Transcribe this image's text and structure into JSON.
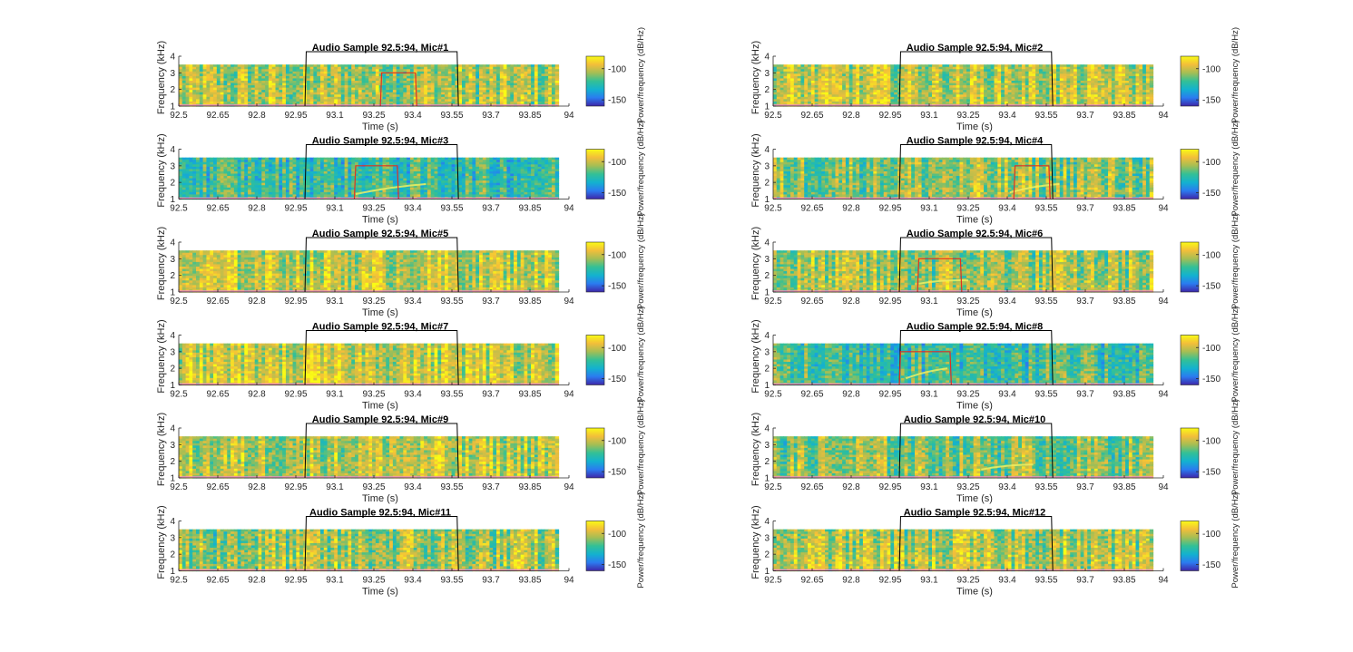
{
  "chart_data": {
    "type": "heatmap",
    "layout": "6 rows x 2 columns of spectrogram panels",
    "x_label": "Time (s)",
    "y_label": "Frequency (kHz)",
    "colorbar_label": "Power/frequency (dB/Hz)",
    "x_range": [
      92.5,
      94
    ],
    "x_ticks": [
      92.5,
      92.65,
      92.8,
      92.95,
      93.1,
      93.25,
      93.4,
      93.55,
      93.7,
      93.85,
      94
    ],
    "x_tick_labels": [
      "92.5",
      "92.65",
      "92.8",
      "92.95",
      "93.1",
      "93.25",
      "93.4",
      "93.55",
      "93.7",
      "93.85",
      "94"
    ],
    "y_range": [
      1,
      4
    ],
    "y_ticks": [
      1,
      2,
      3,
      4
    ],
    "y_tick_labels": [
      "1",
      "2",
      "3",
      "4"
    ],
    "spectrogram_freq_max_khz": 3.5,
    "colorbar_range": [
      -160,
      -80
    ],
    "colorbar_ticks": [
      -100,
      -150
    ],
    "colorbar_tick_labels": [
      "-100",
      "-150"
    ],
    "colormap": [
      "#3e26a8",
      "#2b7bf0",
      "#13b2cf",
      "#33c096",
      "#a5be54",
      "#f3be3a",
      "#f9fb15"
    ],
    "annotation_colors": {
      "black_window": "#000000",
      "red_window": "#e03020",
      "event_line": "#f0f060"
    },
    "panels": [
      {
        "title": "Audio Sample 92.5:94, Mic#1",
        "black_window": [
          92.99,
          93.57
        ],
        "red_window": [
          93.28,
          93.41
        ],
        "mean_level": 0.66,
        "contrast": 0.28,
        "event": null
      },
      {
        "title": "Audio Sample 92.5:94, Mic#2",
        "black_window": [
          92.99,
          93.57
        ],
        "red_window": null,
        "mean_level": 0.7,
        "contrast": 0.26,
        "event": null
      },
      {
        "title": "Audio Sample 92.5:94, Mic#3",
        "black_window": [
          92.99,
          93.57
        ],
        "red_window": [
          93.18,
          93.34
        ],
        "mean_level": 0.46,
        "contrast": 0.25,
        "event": [
          93.18,
          1.3,
          93.45,
          1.9
        ]
      },
      {
        "title": "Audio Sample 92.5:94, Mic#4",
        "black_window": [
          92.99,
          93.57
        ],
        "red_window": [
          93.43,
          93.56
        ],
        "mean_level": 0.62,
        "contrast": 0.28,
        "event": [
          93.41,
          1.4,
          93.6,
          1.9
        ]
      },
      {
        "title": "Audio Sample 92.5:94, Mic#5",
        "black_window": [
          92.99,
          93.57
        ],
        "red_window": null,
        "mean_level": 0.72,
        "contrast": 0.25,
        "event": null
      },
      {
        "title": "Audio Sample 92.5:94, Mic#6",
        "black_window": [
          92.99,
          93.57
        ],
        "red_window": [
          93.06,
          93.22
        ],
        "mean_level": 0.64,
        "contrast": 0.28,
        "event": [
          93.06,
          1.5,
          93.25,
          1.7
        ]
      },
      {
        "title": "Audio Sample 92.5:94, Mic#7",
        "black_window": [
          92.99,
          93.57
        ],
        "red_window": null,
        "mean_level": 0.74,
        "contrast": 0.24,
        "event": null
      },
      {
        "title": "Audio Sample 92.5:94, Mic#8",
        "black_window": [
          92.99,
          93.57
        ],
        "red_window": [
          92.99,
          93.18
        ],
        "mean_level": 0.48,
        "contrast": 0.26,
        "event": [
          93.01,
          1.4,
          93.17,
          2.0
        ]
      },
      {
        "title": "Audio Sample 92.5:94, Mic#9",
        "black_window": [
          92.99,
          93.57
        ],
        "red_window": null,
        "mean_level": 0.7,
        "contrast": 0.27,
        "event": null
      },
      {
        "title": "Audio Sample 92.5:94, Mic#10",
        "black_window": [
          92.99,
          93.57
        ],
        "red_window": null,
        "mean_level": 0.6,
        "contrast": 0.27,
        "event": [
          93.3,
          1.5,
          93.5,
          1.8
        ]
      },
      {
        "title": "Audio Sample 92.5:94, Mic#11",
        "black_window": [
          92.99,
          93.57
        ],
        "red_window": null,
        "mean_level": 0.64,
        "contrast": 0.3,
        "event": null
      },
      {
        "title": "Audio Sample 92.5:94, Mic#12",
        "black_window": [
          92.99,
          93.57
        ],
        "red_window": null,
        "mean_level": 0.68,
        "contrast": 0.28,
        "event": null
      }
    ]
  }
}
